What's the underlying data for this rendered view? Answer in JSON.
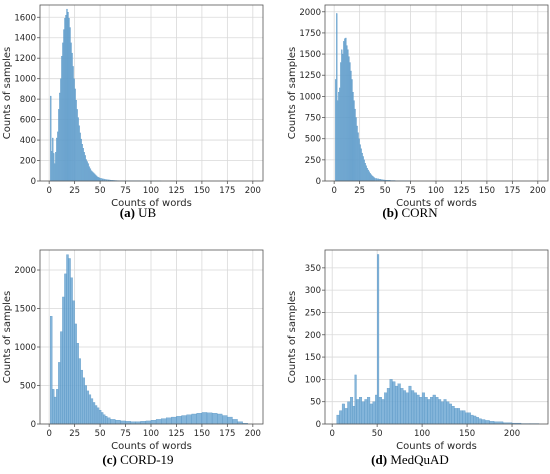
{
  "chart_data": [
    {
      "type": "bar",
      "subtype": "histogram",
      "caption_letter": "(a)",
      "caption_text": "UB",
      "xlabel": "Counts of words",
      "ylabel": "Counts of samples",
      "xlim": [
        -9,
        210
      ],
      "ylim": [
        0,
        1720
      ],
      "xticks": [
        0,
        25,
        50,
        75,
        100,
        125,
        150,
        175,
        200
      ],
      "yticks": [
        0,
        200,
        400,
        600,
        800,
        1000,
        1200,
        1400,
        1600
      ],
      "grid": true,
      "bar_color": "#6fa8d3",
      "x": [
        1,
        2,
        3,
        4,
        5,
        6,
        7,
        8,
        9,
        10,
        11,
        12,
        13,
        14,
        15,
        16,
        17,
        18,
        19,
        20,
        21,
        22,
        23,
        24,
        25,
        26,
        27,
        28,
        29,
        30,
        31,
        32,
        33,
        34,
        35,
        36,
        37,
        38,
        39,
        40,
        41,
        42,
        43,
        44,
        45,
        46,
        47,
        48,
        49,
        50,
        52,
        54,
        56,
        58,
        60,
        62,
        64,
        66,
        68,
        70,
        75,
        80,
        90,
        100
      ],
      "values": [
        830,
        290,
        420,
        270,
        170,
        280,
        420,
        480,
        700,
        860,
        1000,
        1220,
        1350,
        1480,
        1590,
        1620,
        1680,
        1650,
        1590,
        1500,
        1350,
        1250,
        1120,
        1000,
        900,
        790,
        700,
        620,
        540,
        470,
        410,
        360,
        320,
        280,
        250,
        210,
        190,
        170,
        140,
        120,
        100,
        90,
        80,
        70,
        60,
        50,
        40,
        35,
        30,
        25,
        20,
        15,
        12,
        10,
        8,
        6,
        5,
        4,
        3,
        3,
        2,
        2,
        1,
        1
      ]
    },
    {
      "type": "bar",
      "subtype": "histogram",
      "caption_letter": "(b)",
      "caption_text": "CORN",
      "xlabel": "Counts of words",
      "ylabel": "Counts of samples",
      "xlim": [
        -9,
        210
      ],
      "ylim": [
        0,
        2080
      ],
      "xticks": [
        0,
        25,
        50,
        75,
        100,
        125,
        150,
        175,
        200
      ],
      "yticks": [
        0,
        250,
        500,
        750,
        1000,
        1250,
        1500,
        1750,
        2000
      ],
      "grid": true,
      "bar_color": "#6fa8d3",
      "x": [
        1,
        2,
        3,
        4,
        5,
        6,
        7,
        8,
        9,
        10,
        11,
        12,
        13,
        14,
        15,
        16,
        17,
        18,
        19,
        20,
        21,
        22,
        23,
        24,
        25,
        26,
        27,
        28,
        29,
        30,
        31,
        32,
        33,
        34,
        35,
        36,
        37,
        38,
        39,
        40,
        42,
        44,
        46,
        48,
        50,
        55,
        60,
        65,
        70
      ],
      "values": [
        1200,
        1980,
        950,
        1050,
        1100,
        1400,
        1550,
        1500,
        1650,
        1680,
        1690,
        1600,
        1550,
        1470,
        1400,
        1300,
        1200,
        1050,
        950,
        850,
        750,
        650,
        570,
        500,
        430,
        380,
        330,
        290,
        250,
        210,
        180,
        150,
        130,
        110,
        90,
        75,
        60,
        50,
        40,
        30,
        25,
        20,
        15,
        12,
        10,
        6,
        4,
        3,
        2
      ]
    },
    {
      "type": "bar",
      "subtype": "histogram",
      "caption_letter": "(c)",
      "caption_text": "CORD-19",
      "xlabel": "Counts of words",
      "ylabel": "Counts of samples",
      "xlim": [
        -9,
        210
      ],
      "ylim": [
        0,
        2260
      ],
      "xticks": [
        0,
        25,
        50,
        75,
        100,
        125,
        150,
        175,
        200
      ],
      "yticks": [
        0,
        500,
        1000,
        1500,
        2000
      ],
      "grid": true,
      "bar_color": "#6fa8d3",
      "x": [
        1,
        3,
        5,
        7,
        9,
        11,
        13,
        15,
        17,
        19,
        21,
        23,
        25,
        27,
        29,
        31,
        33,
        35,
        37,
        39,
        41,
        43,
        45,
        47,
        49,
        51,
        53,
        55,
        57,
        60,
        65,
        70,
        75,
        80,
        85,
        90,
        95,
        100,
        105,
        110,
        115,
        120,
        125,
        130,
        135,
        140,
        145,
        150,
        155,
        160,
        165,
        170,
        175,
        180,
        185,
        190
      ],
      "values": [
        1400,
        450,
        350,
        450,
        800,
        1200,
        1650,
        1950,
        2200,
        2150,
        1900,
        1600,
        1300,
        1050,
        850,
        700,
        600,
        500,
        430,
        380,
        330,
        280,
        240,
        210,
        180,
        150,
        120,
        100,
        80,
        60,
        50,
        40,
        35,
        30,
        30,
        35,
        40,
        50,
        60,
        70,
        80,
        90,
        100,
        110,
        120,
        130,
        140,
        150,
        145,
        140,
        130,
        110,
        90,
        60,
        30,
        10
      ]
    },
    {
      "type": "bar",
      "subtype": "histogram",
      "caption_letter": "(d)",
      "caption_text": "MedQuAD",
      "xlabel": "Counts of words",
      "ylabel": "Counts of samples",
      "xlim": [
        -8,
        240
      ],
      "ylim": [
        0,
        390
      ],
      "xticks": [
        0,
        50,
        100,
        150,
        200
      ],
      "yticks": [
        0,
        50,
        100,
        150,
        200,
        250,
        300,
        350
      ],
      "grid": true,
      "bar_color": "#6fa8d3",
      "x": [
        5,
        8,
        11,
        14,
        17,
        20,
        23,
        25,
        27,
        30,
        33,
        36,
        39,
        42,
        45,
        48,
        50,
        52,
        55,
        58,
        61,
        64,
        67,
        70,
        73,
        76,
        79,
        82,
        85,
        88,
        91,
        94,
        97,
        100,
        103,
        106,
        109,
        112,
        115,
        118,
        121,
        124,
        127,
        130,
        133,
        136,
        139,
        142,
        145,
        148,
        151,
        154,
        157,
        160,
        163,
        166,
        170,
        175,
        180,
        190,
        200,
        210,
        220
      ],
      "values": [
        20,
        30,
        45,
        35,
        50,
        60,
        40,
        110,
        55,
        60,
        50,
        55,
        60,
        45,
        50,
        65,
        380,
        60,
        55,
        70,
        80,
        100,
        95,
        85,
        90,
        80,
        75,
        70,
        85,
        75,
        70,
        65,
        60,
        70,
        60,
        55,
        60,
        65,
        60,
        55,
        50,
        55,
        50,
        45,
        40,
        35,
        35,
        30,
        30,
        25,
        25,
        20,
        18,
        15,
        12,
        10,
        8,
        6,
        5,
        3,
        2,
        1,
        1
      ]
    }
  ]
}
